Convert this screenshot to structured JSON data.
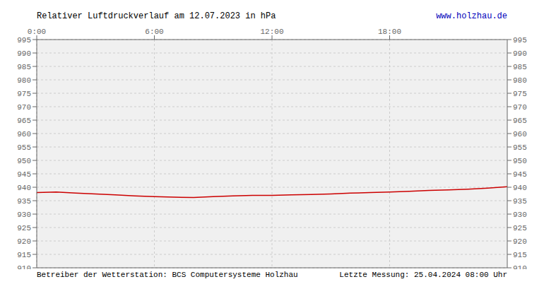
{
  "chart_data": {
    "type": "line",
    "title": "Relativer Luftdruckverlauf am 12.07.2023 in hPa",
    "annotations": [
      {
        "text": "www.holzhau.de",
        "color": "#0000bb"
      },
      {
        "text": "Betreiber der Wetterstation: BCS Computersysteme Holzhau"
      },
      {
        "text": "Letzte Messung: 25.04.2024 08:00 Uhr"
      }
    ],
    "x": [
      0,
      1,
      2,
      3,
      4,
      5,
      6,
      7,
      8,
      9,
      10,
      11,
      12,
      13,
      14,
      15,
      16,
      17,
      18,
      19,
      20,
      21,
      22,
      23,
      24
    ],
    "values": [
      938.0,
      938.2,
      937.8,
      937.5,
      937.2,
      936.8,
      936.5,
      936.3,
      936.2,
      936.5,
      936.8,
      937.0,
      937.0,
      937.2,
      937.3,
      937.5,
      937.8,
      938.0,
      938.2,
      938.5,
      938.8,
      939.0,
      939.3,
      939.7,
      940.2
    ],
    "color": "#cc0000",
    "xlim": [
      0,
      24
    ],
    "xticks": [
      {
        "value": 0,
        "label": "0:00"
      },
      {
        "value": 6,
        "label": "6:00"
      },
      {
        "value": 12,
        "label": "12:00"
      },
      {
        "value": 18,
        "label": "18:00"
      }
    ],
    "ylim": [
      910,
      995
    ],
    "yticks": [
      910,
      915,
      920,
      925,
      930,
      935,
      940,
      945,
      950,
      955,
      960,
      965,
      970,
      975,
      980,
      985,
      990,
      995
    ],
    "grid": true
  }
}
